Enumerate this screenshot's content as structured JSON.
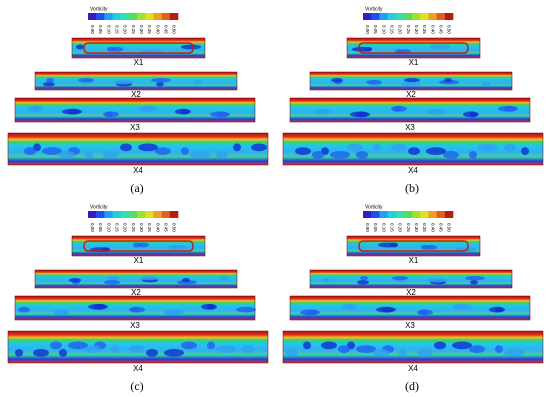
{
  "panels": [
    {
      "label": "(a)",
      "colorbar": {
        "title": "Vorticity",
        "ticks": [
          "0.00",
          "0.05",
          "0.10",
          "0.15",
          "0.20",
          "0.25",
          "0.30",
          "0.35",
          "0.40",
          "0.45",
          "0.50"
        ]
      },
      "slices": [
        "X1",
        "X2",
        "X3",
        "X4"
      ]
    },
    {
      "label": "(b)",
      "colorbar": {
        "title": "Vorticity",
        "ticks": [
          "0.00",
          "0.05",
          "0.10",
          "0.15",
          "0.20",
          "0.25",
          "0.30",
          "0.35",
          "0.40",
          "0.45",
          "0.50"
        ]
      },
      "slices": [
        "X1",
        "X2",
        "X3",
        "X4"
      ]
    },
    {
      "label": "(c)",
      "colorbar": {
        "title": "Vorticity",
        "ticks": [
          "0.00",
          "0.05",
          "0.10",
          "0.15",
          "0.20",
          "0.25",
          "0.30",
          "0.35",
          "0.40",
          "0.45",
          "0.50"
        ]
      },
      "slices": [
        "X1",
        "X2",
        "X3",
        "X4"
      ]
    },
    {
      "label": "(d)",
      "colorbar": {
        "title": "Vorticity",
        "ticks": [
          "0.00",
          "0.05",
          "0.10",
          "0.15",
          "0.20",
          "0.25",
          "0.30",
          "0.35",
          "0.40",
          "0.45",
          "0.50"
        ]
      },
      "slices": [
        "X1",
        "X2",
        "X3",
        "X4"
      ]
    }
  ]
}
